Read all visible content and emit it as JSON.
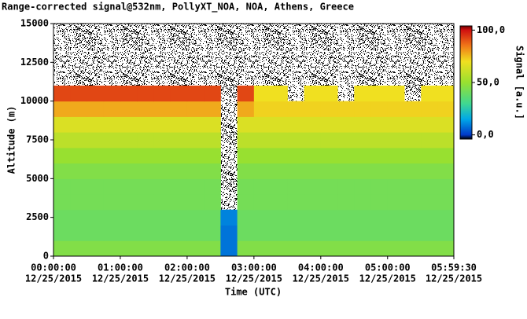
{
  "chart_data": {
    "type": "heatmap",
    "title": "Range-corrected signal@532nm, PollyXT_NOA, NOA, Athens, Greece",
    "xlabel": "Time (UTC)",
    "ylabel": "Altitude (m)",
    "colorbar_label": "Signal [a.u.]",
    "xdate": "12/25/2015",
    "xlim": [
      0,
      21570
    ],
    "xticks": [
      {
        "value": 0,
        "label": "00:00:00"
      },
      {
        "value": 3600,
        "label": "01:00:00"
      },
      {
        "value": 7200,
        "label": "02:00:00"
      },
      {
        "value": 10800,
        "label": "03:00:00"
      },
      {
        "value": 14400,
        "label": "04:00:00"
      },
      {
        "value": 18000,
        "label": "05:00:00"
      },
      {
        "value": 21570,
        "label": "05:59:30"
      }
    ],
    "ylim": [
      0,
      15000
    ],
    "yticks": [
      0,
      2500,
      5000,
      7500,
      10000,
      12500,
      15000
    ],
    "clim": [
      -4,
      104
    ],
    "cticks": [
      {
        "value": 0,
        "label": "0,0"
      },
      {
        "value": 50,
        "label": "50,0"
      },
      {
        "value": 100,
        "label": "100,0"
      }
    ],
    "colorscale": [
      [
        -4,
        "#000000"
      ],
      [
        0,
        "#0038c8"
      ],
      [
        15,
        "#00a8e8"
      ],
      [
        30,
        "#40d890"
      ],
      [
        50,
        "#98e030"
      ],
      [
        70,
        "#f0e020"
      ],
      [
        85,
        "#f07818"
      ],
      [
        100,
        "#d01010"
      ],
      [
        104,
        "#700000"
      ]
    ],
    "xbins": [
      0,
      900,
      1800,
      2700,
      3600,
      4500,
      5400,
      6300,
      7200,
      8100,
      9000,
      9900,
      10800,
      11700,
      12600,
      13500,
      14400,
      15300,
      16200,
      17100,
      18000,
      18900,
      19800,
      20700,
      21570
    ],
    "ybins": [
      0,
      1000,
      2000,
      3000,
      4000,
      5000,
      6000,
      7000,
      8000,
      9000,
      10000,
      11000,
      12000,
      13000,
      14000,
      15000
    ],
    "z": [
      [
        45,
        45,
        45,
        45,
        45,
        45,
        45,
        45,
        45,
        45,
        8,
        45,
        45,
        45,
        45,
        45,
        45,
        45,
        45,
        45,
        45,
        45,
        45,
        45
      ],
      [
        40,
        40,
        40,
        40,
        40,
        40,
        40,
        40,
        40,
        40,
        8,
        40,
        40,
        40,
        40,
        40,
        40,
        40,
        40,
        40,
        40,
        40,
        40,
        40
      ],
      [
        40,
        40,
        40,
        40,
        40,
        40,
        40,
        40,
        40,
        40,
        10,
        40,
        40,
        40,
        40,
        40,
        40,
        40,
        40,
        40,
        40,
        40,
        40,
        40
      ],
      [
        42,
        42,
        42,
        42,
        42,
        42,
        42,
        42,
        42,
        42,
        null,
        42,
        42,
        42,
        42,
        42,
        42,
        42,
        42,
        42,
        42,
        42,
        42,
        42
      ],
      [
        42,
        42,
        42,
        42,
        42,
        42,
        42,
        42,
        42,
        42,
        null,
        42,
        42,
        42,
        42,
        42,
        42,
        42,
        42,
        42,
        42,
        42,
        42,
        42
      ],
      [
        45,
        45,
        45,
        45,
        45,
        45,
        45,
        45,
        45,
        45,
        null,
        45,
        45,
        45,
        45,
        45,
        45,
        45,
        45,
        45,
        45,
        45,
        45,
        45
      ],
      [
        50,
        50,
        50,
        50,
        50,
        50,
        50,
        50,
        50,
        50,
        null,
        50,
        50,
        50,
        50,
        50,
        50,
        50,
        50,
        50,
        50,
        50,
        50,
        50
      ],
      [
        58,
        58,
        58,
        58,
        58,
        58,
        58,
        58,
        58,
        58,
        null,
        58,
        58,
        58,
        58,
        58,
        58,
        58,
        58,
        58,
        58,
        58,
        58,
        58
      ],
      [
        65,
        65,
        65,
        65,
        65,
        65,
        65,
        65,
        65,
        65,
        null,
        65,
        65,
        65,
        65,
        65,
        65,
        65,
        65,
        65,
        65,
        65,
        65,
        65
      ],
      [
        78,
        78,
        78,
        78,
        78,
        78,
        78,
        78,
        78,
        78,
        null,
        78,
        72,
        72,
        72,
        72,
        72,
        72,
        72,
        72,
        72,
        72,
        72,
        72
      ],
      [
        92,
        92,
        92,
        92,
        92,
        92,
        92,
        92,
        92,
        92,
        null,
        92,
        70,
        70,
        null,
        70,
        70,
        null,
        70,
        70,
        70,
        null,
        70,
        70
      ],
      [
        null,
        null,
        null,
        null,
        null,
        null,
        null,
        null,
        null,
        null,
        null,
        null,
        null,
        null,
        null,
        null,
        null,
        null,
        null,
        null,
        null,
        null,
        null,
        null
      ],
      [
        null,
        null,
        null,
        null,
        null,
        null,
        null,
        null,
        null,
        null,
        null,
        null,
        null,
        null,
        null,
        null,
        null,
        null,
        null,
        null,
        null,
        null,
        null,
        null
      ],
      [
        null,
        null,
        null,
        null,
        null,
        null,
        null,
        null,
        null,
        null,
        null,
        null,
        null,
        null,
        null,
        null,
        null,
        null,
        null,
        null,
        null,
        null,
        null,
        null
      ],
      [
        null,
        null,
        null,
        null,
        null,
        null,
        null,
        null,
        null,
        null,
        null,
        null,
        null,
        null,
        null,
        null,
        null,
        null,
        null,
        null,
        null,
        null,
        null,
        null
      ]
    ]
  }
}
